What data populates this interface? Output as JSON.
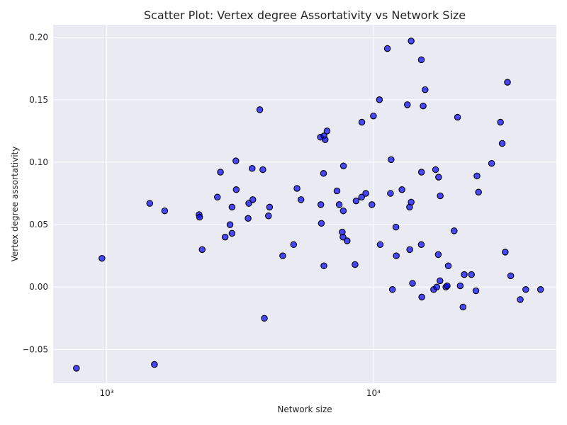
{
  "chart_data": {
    "type": "scatter",
    "title": "Scatter Plot: Vertex degree Assortativity vs Network Size",
    "xlabel": "Network size",
    "ylabel": "Vertex degree assortativity",
    "xscale": "log",
    "xlim": [
      630,
      48500
    ],
    "ylim": [
      -0.077,
      0.21
    ],
    "xticks": [
      {
        "value": 1000,
        "label": "10³"
      },
      {
        "value": 10000,
        "label": "10⁴"
      }
    ],
    "yticks": [
      {
        "value": -0.05,
        "label": "−0.05"
      },
      {
        "value": 0.0,
        "label": "0.00"
      },
      {
        "value": 0.05,
        "label": "0.05"
      },
      {
        "value": 0.1,
        "label": "0.10"
      },
      {
        "value": 0.15,
        "label": "0.15"
      },
      {
        "value": 0.2,
        "label": "0.20"
      }
    ],
    "grid": true,
    "colors": {
      "background": "#eaeaf2",
      "marker_fill": "#0000ff",
      "marker_opacity": 0.7,
      "marker_edge": "#000000"
    },
    "points": [
      {
        "x": 770,
        "y": -0.065
      },
      {
        "x": 960,
        "y": 0.023
      },
      {
        "x": 1450,
        "y": 0.067
      },
      {
        "x": 1510,
        "y": -0.062
      },
      {
        "x": 1650,
        "y": 0.061
      },
      {
        "x": 2220,
        "y": 0.058
      },
      {
        "x": 2230,
        "y": 0.056
      },
      {
        "x": 2280,
        "y": 0.03
      },
      {
        "x": 2600,
        "y": 0.072
      },
      {
        "x": 2670,
        "y": 0.092
      },
      {
        "x": 2780,
        "y": 0.04
      },
      {
        "x": 2900,
        "y": 0.05
      },
      {
        "x": 2950,
        "y": 0.064
      },
      {
        "x": 2950,
        "y": 0.043
      },
      {
        "x": 3050,
        "y": 0.101
      },
      {
        "x": 3060,
        "y": 0.078
      },
      {
        "x": 3390,
        "y": 0.055
      },
      {
        "x": 3410,
        "y": 0.067
      },
      {
        "x": 3510,
        "y": 0.095
      },
      {
        "x": 3530,
        "y": 0.07
      },
      {
        "x": 3750,
        "y": 0.142
      },
      {
        "x": 3850,
        "y": 0.094
      },
      {
        "x": 3900,
        "y": -0.025
      },
      {
        "x": 4040,
        "y": 0.057
      },
      {
        "x": 4080,
        "y": 0.064
      },
      {
        "x": 4570,
        "y": 0.025
      },
      {
        "x": 5020,
        "y": 0.034
      },
      {
        "x": 5170,
        "y": 0.079
      },
      {
        "x": 5350,
        "y": 0.07
      },
      {
        "x": 6330,
        "y": 0.12
      },
      {
        "x": 6350,
        "y": 0.066
      },
      {
        "x": 6380,
        "y": 0.051
      },
      {
        "x": 6500,
        "y": 0.091
      },
      {
        "x": 6520,
        "y": 0.121
      },
      {
        "x": 6520,
        "y": 0.017
      },
      {
        "x": 6590,
        "y": 0.118
      },
      {
        "x": 6700,
        "y": 0.125
      },
      {
        "x": 7300,
        "y": 0.077
      },
      {
        "x": 7440,
        "y": 0.066
      },
      {
        "x": 7640,
        "y": 0.044
      },
      {
        "x": 7690,
        "y": 0.04
      },
      {
        "x": 7710,
        "y": 0.061
      },
      {
        "x": 7720,
        "y": 0.097
      },
      {
        "x": 7970,
        "y": 0.037
      },
      {
        "x": 8530,
        "y": 0.018
      },
      {
        "x": 8610,
        "y": 0.069
      },
      {
        "x": 9030,
        "y": 0.072
      },
      {
        "x": 9050,
        "y": 0.132
      },
      {
        "x": 9360,
        "y": 0.075
      },
      {
        "x": 9870,
        "y": 0.066
      },
      {
        "x": 10000,
        "y": 0.137
      },
      {
        "x": 10530,
        "y": 0.15
      },
      {
        "x": 10600,
        "y": 0.034
      },
      {
        "x": 11280,
        "y": 0.191
      },
      {
        "x": 11580,
        "y": 0.075
      },
      {
        "x": 11650,
        "y": 0.102
      },
      {
        "x": 11780,
        "y": -0.002
      },
      {
        "x": 12140,
        "y": 0.048
      },
      {
        "x": 12180,
        "y": 0.025
      },
      {
        "x": 12790,
        "y": 0.078
      },
      {
        "x": 13400,
        "y": 0.146
      },
      {
        "x": 13660,
        "y": 0.064
      },
      {
        "x": 13680,
        "y": 0.03
      },
      {
        "x": 13850,
        "y": 0.068
      },
      {
        "x": 13850,
        "y": 0.197
      },
      {
        "x": 14010,
        "y": 0.003
      },
      {
        "x": 15110,
        "y": 0.034
      },
      {
        "x": 15120,
        "y": 0.182
      },
      {
        "x": 15140,
        "y": 0.092
      },
      {
        "x": 15180,
        "y": -0.008
      },
      {
        "x": 15360,
        "y": 0.145
      },
      {
        "x": 15620,
        "y": 0.158
      },
      {
        "x": 16820,
        "y": -0.002
      },
      {
        "x": 17100,
        "y": 0.094
      },
      {
        "x": 17270,
        "y": 0.0
      },
      {
        "x": 17500,
        "y": 0.026
      },
      {
        "x": 17550,
        "y": 0.088
      },
      {
        "x": 17760,
        "y": 0.005
      },
      {
        "x": 17800,
        "y": 0.073
      },
      {
        "x": 18690,
        "y": 0.0
      },
      {
        "x": 18900,
        "y": 0.001
      },
      {
        "x": 19080,
        "y": 0.017
      },
      {
        "x": 20070,
        "y": 0.045
      },
      {
        "x": 20670,
        "y": 0.136
      },
      {
        "x": 21150,
        "y": 0.001
      },
      {
        "x": 21660,
        "y": -0.016
      },
      {
        "x": 21900,
        "y": 0.01
      },
      {
        "x": 23310,
        "y": 0.01
      },
      {
        "x": 24220,
        "y": -0.003
      },
      {
        "x": 24440,
        "y": 0.089
      },
      {
        "x": 24770,
        "y": 0.076
      },
      {
        "x": 27730,
        "y": 0.099
      },
      {
        "x": 29940,
        "y": 0.132
      },
      {
        "x": 30390,
        "y": 0.115
      },
      {
        "x": 31190,
        "y": 0.028
      },
      {
        "x": 31800,
        "y": 0.164
      },
      {
        "x": 32710,
        "y": 0.009
      },
      {
        "x": 35510,
        "y": -0.01
      },
      {
        "x": 37240,
        "y": -0.002
      },
      {
        "x": 42310,
        "y": -0.002
      }
    ]
  }
}
